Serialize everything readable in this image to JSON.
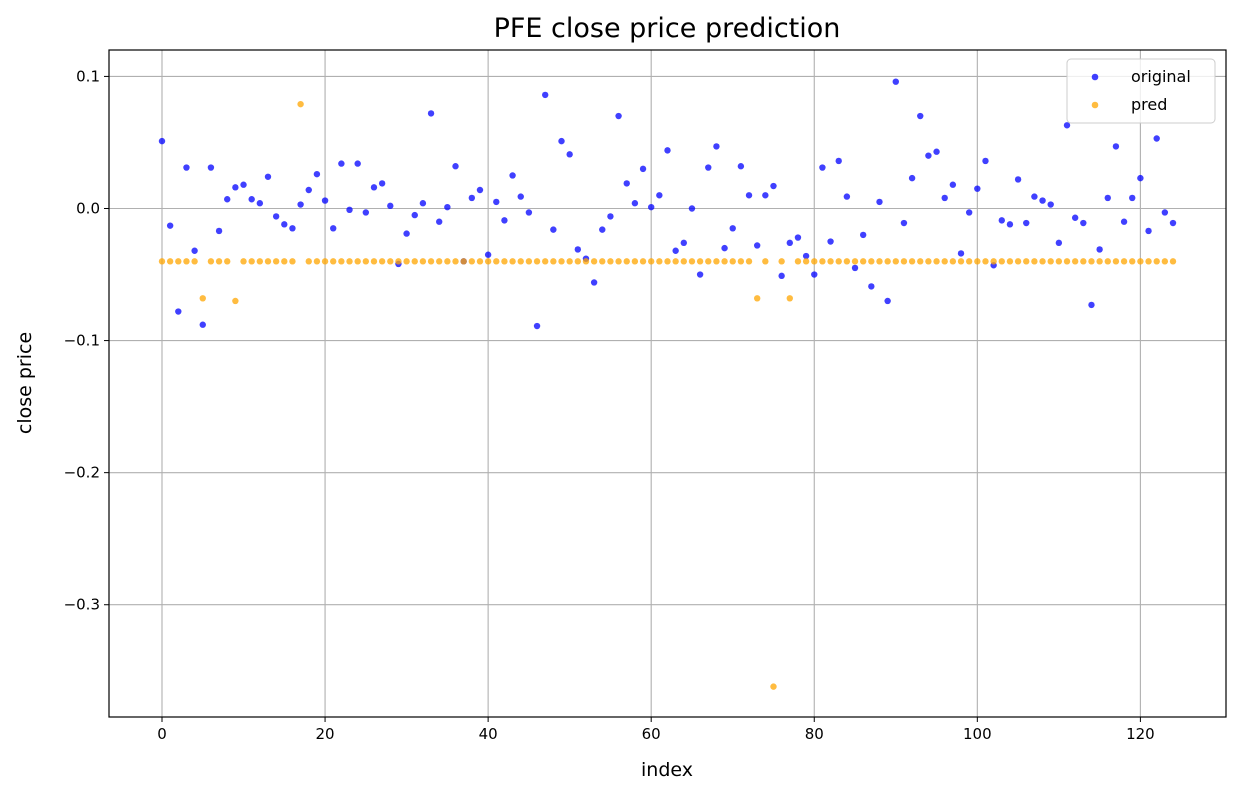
{
  "chart_data": {
    "type": "scatter",
    "title": "PFE close price prediction",
    "xlabel": "index",
    "ylabel": "close price",
    "xlim": [
      -6.5,
      130.5
    ],
    "ylim": [
      -0.385,
      0.12
    ],
    "xticks": [
      0,
      20,
      40,
      60,
      80,
      100,
      120
    ],
    "xtick_labels": [
      "0",
      "20",
      "40",
      "60",
      "80",
      "100",
      "120"
    ],
    "yticks": [
      0.1,
      0.0,
      -0.1,
      -0.2,
      -0.3
    ],
    "ytick_labels": [
      "0.1",
      "0.0",
      "−0.1",
      "−0.2",
      "−0.3"
    ],
    "grid": true,
    "legend": "top-right",
    "series": [
      {
        "name": "original",
        "color": "#0000ff",
        "x": [
          0,
          1,
          2,
          3,
          4,
          5,
          6,
          7,
          8,
          9,
          10,
          11,
          12,
          13,
          14,
          15,
          16,
          17,
          18,
          19,
          20,
          21,
          22,
          23,
          24,
          25,
          26,
          27,
          28,
          29,
          30,
          31,
          32,
          33,
          34,
          35,
          36,
          37,
          38,
          39,
          40,
          41,
          42,
          43,
          44,
          45,
          46,
          47,
          48,
          49,
          50,
          51,
          52,
          53,
          54,
          55,
          56,
          57,
          58,
          59,
          60,
          61,
          62,
          63,
          64,
          65,
          66,
          67,
          68,
          69,
          70,
          71,
          72,
          73,
          74,
          75,
          76,
          77,
          78,
          79,
          80,
          81,
          82,
          83,
          84,
          85,
          86,
          87,
          88,
          89,
          90,
          91,
          92,
          93,
          94,
          95,
          96,
          97,
          98,
          99,
          100,
          101,
          102,
          103,
          104,
          105,
          106,
          107,
          108,
          109,
          110,
          111,
          112,
          113,
          114,
          115,
          116,
          117,
          118,
          119,
          120,
          121,
          122,
          123,
          124
        ],
        "y": [
          0.051,
          -0.013,
          -0.078,
          0.031,
          -0.032,
          -0.088,
          0.031,
          -0.017,
          0.007,
          0.016,
          0.018,
          0.007,
          0.004,
          0.024,
          -0.006,
          -0.012,
          -0.015,
          0.003,
          0.014,
          0.026,
          0.006,
          -0.015,
          0.034,
          -0.001,
          0.034,
          -0.003,
          0.016,
          0.019,
          0.002,
          -0.042,
          -0.019,
          -0.005,
          0.004,
          0.072,
          -0.01,
          0.001,
          0.032,
          -0.04,
          0.008,
          0.014,
          -0.035,
          0.005,
          -0.009,
          0.025,
          0.009,
          -0.003,
          -0.089,
          0.086,
          -0.016,
          0.051,
          0.041,
          -0.031,
          -0.038,
          -0.056,
          -0.016,
          -0.006,
          0.07,
          0.019,
          0.004,
          0.03,
          0.001,
          0.01,
          0.044,
          -0.032,
          -0.026,
          0.0,
          -0.05,
          0.031,
          0.047,
          -0.03,
          -0.015,
          0.032,
          0.01,
          -0.028,
          0.01,
          0.017,
          -0.051,
          -0.026,
          -0.022,
          -0.036,
          -0.05,
          0.031,
          -0.025,
          0.036,
          0.009,
          -0.045,
          -0.02,
          -0.059,
          0.005,
          -0.07,
          0.096,
          -0.011,
          0.023,
          0.07,
          0.04,
          0.043,
          0.008,
          0.018,
          -0.034,
          -0.003,
          0.015,
          0.036,
          -0.043,
          -0.009,
          -0.012,
          0.022,
          -0.011,
          0.009,
          0.006,
          0.003,
          -0.026,
          0.063,
          -0.007,
          -0.011,
          -0.073,
          -0.031,
          0.008,
          0.047,
          -0.01,
          0.008,
          0.023,
          -0.017,
          0.053,
          -0.003,
          -0.011
        ]
      },
      {
        "name": "pred",
        "color": "#ffa500",
        "x": [
          0,
          1,
          2,
          3,
          4,
          5,
          6,
          7,
          8,
          9,
          10,
          11,
          12,
          13,
          14,
          15,
          16,
          17,
          18,
          19,
          20,
          21,
          22,
          23,
          24,
          25,
          26,
          27,
          28,
          29,
          30,
          31,
          32,
          33,
          34,
          35,
          36,
          37,
          38,
          39,
          40,
          41,
          42,
          43,
          44,
          45,
          46,
          47,
          48,
          49,
          50,
          51,
          52,
          53,
          54,
          55,
          56,
          57,
          58,
          59,
          60,
          61,
          62,
          63,
          64,
          65,
          66,
          67,
          68,
          69,
          70,
          71,
          72,
          73,
          74,
          75,
          76,
          77,
          78,
          79,
          80,
          81,
          82,
          83,
          84,
          85,
          86,
          87,
          88,
          89,
          90,
          91,
          92,
          93,
          94,
          95,
          96,
          97,
          98,
          99,
          100,
          101,
          102,
          103,
          104,
          105,
          106,
          107,
          108,
          109,
          110,
          111,
          112,
          113,
          114,
          115,
          116,
          117,
          118,
          119,
          120,
          121,
          122,
          123,
          124
        ],
        "y": [
          -0.04,
          -0.04,
          -0.04,
          -0.04,
          -0.04,
          -0.068,
          -0.04,
          -0.04,
          -0.04,
          -0.07,
          -0.04,
          -0.04,
          -0.04,
          -0.04,
          -0.04,
          -0.04,
          -0.04,
          0.079,
          -0.04,
          -0.04,
          -0.04,
          -0.04,
          -0.04,
          -0.04,
          -0.04,
          -0.04,
          -0.04,
          -0.04,
          -0.04,
          -0.04,
          -0.04,
          -0.04,
          -0.04,
          -0.04,
          -0.04,
          -0.04,
          -0.04,
          -0.04,
          -0.04,
          -0.04,
          -0.04,
          -0.04,
          -0.04,
          -0.04,
          -0.04,
          -0.04,
          -0.04,
          -0.04,
          -0.04,
          -0.04,
          -0.04,
          -0.04,
          -0.04,
          -0.04,
          -0.04,
          -0.04,
          -0.04,
          -0.04,
          -0.04,
          -0.04,
          -0.04,
          -0.04,
          -0.04,
          -0.04,
          -0.04,
          -0.04,
          -0.04,
          -0.04,
          -0.04,
          -0.04,
          -0.04,
          -0.04,
          -0.04,
          -0.068,
          -0.04,
          -0.362,
          -0.04,
          -0.068,
          -0.04,
          -0.04,
          -0.04,
          -0.04,
          -0.04,
          -0.04,
          -0.04,
          -0.04,
          -0.04,
          -0.04,
          -0.04,
          -0.04,
          -0.04,
          -0.04,
          -0.04,
          -0.04,
          -0.04,
          -0.04,
          -0.04,
          -0.04,
          -0.04,
          -0.04,
          -0.04,
          -0.04,
          -0.04,
          -0.04,
          -0.04,
          -0.04,
          -0.04,
          -0.04,
          -0.04,
          -0.04,
          -0.04,
          -0.04,
          -0.04,
          -0.04,
          -0.04,
          -0.04,
          -0.04,
          -0.04,
          -0.04,
          -0.04,
          -0.04,
          -0.04,
          -0.04,
          -0.04,
          -0.04
        ]
      }
    ]
  }
}
